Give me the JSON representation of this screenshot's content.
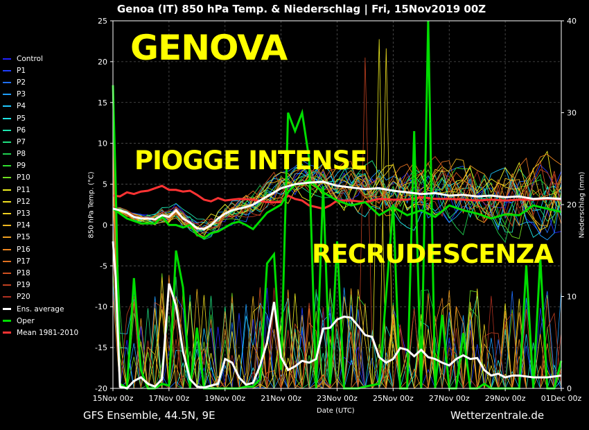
{
  "header": {
    "title": "Genoa  (IT)  850 hPa Temp. & Niederschlag | Fri, 15Nov2019 00Z"
  },
  "overlay": {
    "city": "GENOVA",
    "phrase1": "PIOGGE INTENSE",
    "phrase2": "RECRUDESCENZA"
  },
  "footer": {
    "source": "GFS Ensemble, 44.5N, 9E",
    "site": "Wetterzentrale.de"
  },
  "chart_data": {
    "type": "line",
    "xlabel": "Date (UTC)",
    "ylabel_left": "850 hPa Temp. (°C)",
    "ylabel_right": "Niederschlag (mm)",
    "x_ticks": [
      "15Nov 00z",
      "17Nov 00z",
      "19Nov 00z",
      "21Nov 00z",
      "23Nov 00z",
      "25Nov 00z",
      "27Nov 00z",
      "29Nov 00z",
      "01Dec 00z"
    ],
    "x_days_range": [
      0,
      16
    ],
    "ylim_left": [
      -20,
      25
    ],
    "yticks_left": [
      -20,
      -15,
      -10,
      -5,
      0,
      5,
      10,
      15,
      20,
      25
    ],
    "ylim_right": [
      0,
      40
    ],
    "yticks_right": [
      0,
      10,
      20,
      30,
      40
    ],
    "grid": true,
    "legend_position": "left",
    "series": [
      {
        "name": "Control",
        "color": "#2222ff"
      },
      {
        "name": "P1",
        "color": "#1f3fff"
      },
      {
        "name": "P2",
        "color": "#1f6fff"
      },
      {
        "name": "P3",
        "color": "#1f9fff"
      },
      {
        "name": "P4",
        "color": "#1fc8ff"
      },
      {
        "name": "P5",
        "color": "#1fe8e8"
      },
      {
        "name": "P6",
        "color": "#1fe8b0"
      },
      {
        "name": "P7",
        "color": "#1fe080"
      },
      {
        "name": "P8",
        "color": "#1fd050"
      },
      {
        "name": "P9",
        "color": "#30e030"
      },
      {
        "name": "P10",
        "color": "#70e020"
      },
      {
        "name": "P11",
        "color": "#f0f020"
      },
      {
        "name": "P12",
        "color": "#f0e020"
      },
      {
        "name": "P13",
        "color": "#f0d020"
      },
      {
        "name": "P14",
        "color": "#f0b820"
      },
      {
        "name": "P15",
        "color": "#f0a020"
      },
      {
        "name": "P16",
        "color": "#f08820"
      },
      {
        "name": "P17",
        "color": "#e07020"
      },
      {
        "name": "P18",
        "color": "#d05020"
      },
      {
        "name": "P19",
        "color": "#c04020"
      },
      {
        "name": "P20",
        "color": "#b03020"
      },
      {
        "name": "Ens. average",
        "color": "#ffffff"
      },
      {
        "name": "Oper",
        "color": "#00dd00"
      },
      {
        "name": "Mean 1981-2010",
        "color": "#ff3333"
      }
    ],
    "ens_average_temp": [
      [
        0,
        2
      ],
      [
        0.25,
        1.8
      ],
      [
        0.5,
        1.5
      ],
      [
        0.75,
        1
      ],
      [
        1,
        0.8
      ],
      [
        1.25,
        0.8
      ],
      [
        1.5,
        0.7
      ],
      [
        1.75,
        1.2
      ],
      [
        2,
        1
      ],
      [
        2.25,
        1.8
      ],
      [
        2.5,
        0.8
      ],
      [
        2.75,
        0.3
      ],
      [
        3,
        -0.4
      ],
      [
        3.25,
        -0.5
      ],
      [
        3.5,
        0
      ],
      [
        3.75,
        0.8
      ],
      [
        4,
        1.4
      ],
      [
        4.25,
        1.8
      ],
      [
        4.5,
        2
      ],
      [
        4.75,
        2.2
      ],
      [
        5,
        2.5
      ],
      [
        5.25,
        3
      ],
      [
        5.5,
        3.5
      ],
      [
        5.75,
        4
      ],
      [
        6,
        4.5
      ],
      [
        6.5,
        5
      ],
      [
        7,
        5.2
      ],
      [
        7.5,
        5.3
      ],
      [
        8,
        4.8
      ],
      [
        8.5,
        4.6
      ],
      [
        9,
        4.4
      ],
      [
        9.5,
        4.5
      ],
      [
        10,
        4.2
      ],
      [
        10.5,
        4
      ],
      [
        11,
        3.8
      ],
      [
        11.5,
        3.9
      ],
      [
        12,
        3.6
      ],
      [
        12.5,
        3.7
      ],
      [
        13,
        3.5
      ],
      [
        13.5,
        3.6
      ],
      [
        14,
        3.4
      ],
      [
        14.5,
        3.5
      ],
      [
        15,
        3.2
      ],
      [
        15.5,
        3.3
      ],
      [
        16,
        3.2
      ]
    ],
    "ens_average_precip": [
      [
        0,
        16
      ],
      [
        0.1,
        12
      ],
      [
        0.25,
        0.2
      ],
      [
        0.5,
        0
      ],
      [
        0.75,
        0.8
      ],
      [
        1,
        1.2
      ],
      [
        1.25,
        0.5
      ],
      [
        1.5,
        0.2
      ],
      [
        1.75,
        1
      ],
      [
        2,
        11.4
      ],
      [
        2.25,
        9
      ],
      [
        2.5,
        4
      ],
      [
        2.75,
        1
      ],
      [
        3,
        0.2
      ],
      [
        3.25,
        0.1
      ],
      [
        3.5,
        0.3
      ],
      [
        3.75,
        0.5
      ],
      [
        4,
        3.2
      ],
      [
        4.25,
        2.8
      ],
      [
        4.5,
        1.2
      ],
      [
        4.75,
        0.4
      ],
      [
        5,
        0.6
      ],
      [
        5.25,
        2.5
      ],
      [
        5.5,
        5
      ],
      [
        5.75,
        9.4
      ],
      [
        6,
        3.4
      ],
      [
        6.25,
        2
      ],
      [
        6.5,
        2.4
      ],
      [
        6.75,
        3
      ],
      [
        7,
        2.8
      ],
      [
        7.25,
        3.2
      ],
      [
        7.5,
        6.5
      ],
      [
        7.75,
        6.6
      ],
      [
        8,
        7.5
      ],
      [
        8.25,
        7.8
      ],
      [
        8.5,
        7.7
      ],
      [
        8.75,
        6.8
      ],
      [
        9,
        5.8
      ],
      [
        9.25,
        5.6
      ],
      [
        9.5,
        3.4
      ],
      [
        9.75,
        2.8
      ],
      [
        10,
        3.2
      ],
      [
        10.25,
        4.4
      ],
      [
        10.5,
        4.2
      ],
      [
        10.75,
        3.5
      ],
      [
        11,
        4.2
      ],
      [
        11.25,
        3.4
      ],
      [
        11.5,
        3.2
      ],
      [
        11.75,
        2.8
      ],
      [
        12,
        2.5
      ],
      [
        12.25,
        3.2
      ],
      [
        12.5,
        3.6
      ],
      [
        12.75,
        3.2
      ],
      [
        13,
        3.3
      ],
      [
        13.25,
        2
      ],
      [
        13.5,
        1.4
      ],
      [
        13.75,
        1.6
      ],
      [
        14,
        1.2
      ],
      [
        14.25,
        1.4
      ],
      [
        14.5,
        1.4
      ],
      [
        15,
        1.2
      ],
      [
        15.5,
        1.2
      ],
      [
        16,
        1.4
      ]
    ],
    "oper_temp": [
      [
        0,
        2
      ],
      [
        0.5,
        0.8
      ],
      [
        1,
        0.2
      ],
      [
        1.5,
        0.2
      ],
      [
        1.75,
        1
      ],
      [
        2,
        0
      ],
      [
        2.25,
        0
      ],
      [
        2.5,
        -0.3
      ],
      [
        2.75,
        0
      ],
      [
        3,
        -1.2
      ],
      [
        3.25,
        -1.6
      ],
      [
        3.5,
        -1
      ],
      [
        3.75,
        -0.8
      ],
      [
        4,
        -0.3
      ],
      [
        4.25,
        0.2
      ],
      [
        4.5,
        0.4
      ],
      [
        4.75,
        0
      ],
      [
        5,
        -0.5
      ],
      [
        5.5,
        1.5
      ],
      [
        6,
        2.5
      ],
      [
        6.25,
        4
      ],
      [
        6.5,
        5
      ],
      [
        6.75,
        5
      ],
      [
        7,
        5.5
      ],
      [
        7.5,
        4
      ],
      [
        8,
        3
      ],
      [
        8.5,
        2.4
      ],
      [
        9,
        2.8
      ],
      [
        9.5,
        1.2
      ],
      [
        10,
        2.2
      ],
      [
        10.5,
        1.2
      ],
      [
        11,
        1.8
      ],
      [
        11.5,
        1
      ],
      [
        12,
        2.4
      ],
      [
        12.5,
        1.8
      ],
      [
        13,
        1.4
      ],
      [
        13.5,
        0.8
      ],
      [
        14,
        1.3
      ],
      [
        14.5,
        1.2
      ],
      [
        15,
        2.4
      ],
      [
        15.5,
        2
      ],
      [
        16,
        1.6
      ]
    ],
    "oper_precip": [
      [
        0,
        33
      ],
      [
        0.1,
        22
      ],
      [
        0.25,
        0.5
      ],
      [
        0.5,
        0
      ],
      [
        0.75,
        12
      ],
      [
        1,
        2
      ],
      [
        1.25,
        0
      ],
      [
        1.5,
        0
      ],
      [
        1.75,
        0.5
      ],
      [
        2,
        0.3
      ],
      [
        2.25,
        15
      ],
      [
        2.5,
        11
      ],
      [
        2.75,
        0
      ],
      [
        3,
        6.6
      ],
      [
        3.25,
        0
      ],
      [
        3.5,
        0
      ],
      [
        3.75,
        0
      ],
      [
        4,
        0
      ],
      [
        4.25,
        0
      ],
      [
        4.5,
        0
      ],
      [
        4.75,
        0.2
      ],
      [
        5,
        0.2
      ],
      [
        5.25,
        1
      ],
      [
        5.5,
        13.6
      ],
      [
        5.75,
        14.6
      ],
      [
        6,
        2
      ],
      [
        6.25,
        30
      ],
      [
        6.5,
        28
      ],
      [
        6.75,
        30
      ],
      [
        7,
        25
      ],
      [
        7.25,
        0
      ],
      [
        7.5,
        22
      ],
      [
        7.75,
        0.5
      ],
      [
        8,
        16
      ],
      [
        8.25,
        0
      ],
      [
        8.5,
        0
      ],
      [
        8.75,
        0
      ],
      [
        9,
        0.2
      ],
      [
        9.5,
        0.5
      ],
      [
        10,
        20
      ],
      [
        10.25,
        0
      ],
      [
        10.5,
        0
      ],
      [
        10.75,
        28
      ],
      [
        11,
        0
      ],
      [
        11.25,
        40
      ],
      [
        11.5,
        0
      ],
      [
        11.75,
        8
      ],
      [
        12,
        0
      ],
      [
        12.25,
        0
      ],
      [
        12.5,
        6
      ],
      [
        12.75,
        0
      ],
      [
        13,
        0
      ],
      [
        13.25,
        0.5
      ],
      [
        13.5,
        0
      ],
      [
        14,
        0
      ],
      [
        14.25,
        0
      ],
      [
        14.5,
        0
      ],
      [
        14.75,
        13.4
      ],
      [
        15,
        0
      ],
      [
        15.25,
        14.2
      ],
      [
        15.5,
        0
      ],
      [
        15.75,
        0
      ],
      [
        16,
        3
      ]
    ],
    "mean_temp": [
      [
        0,
        3.6
      ],
      [
        0.25,
        3.5
      ],
      [
        0.5,
        4
      ],
      [
        0.75,
        3.8
      ],
      [
        1,
        4.1
      ],
      [
        1.25,
        4.2
      ],
      [
        1.5,
        4.5
      ],
      [
        1.75,
        4.8
      ],
      [
        2,
        4.3
      ],
      [
        2.25,
        4.3
      ],
      [
        2.5,
        4.1
      ],
      [
        2.75,
        4.2
      ],
      [
        3,
        3.7
      ],
      [
        3.25,
        3.1
      ],
      [
        3.5,
        2.9
      ],
      [
        3.75,
        3.3
      ],
      [
        4,
        3
      ],
      [
        4.25,
        3.1
      ],
      [
        4.5,
        3.2
      ],
      [
        5,
        3.1
      ],
      [
        5.5,
        2.8
      ],
      [
        6,
        2.8
      ],
      [
        6.25,
        3.6
      ],
      [
        6.5,
        3.2
      ],
      [
        6.75,
        3
      ],
      [
        7,
        2.4
      ],
      [
        7.25,
        2.2
      ],
      [
        7.5,
        2
      ],
      [
        7.75,
        2.4
      ],
      [
        8,
        3
      ],
      [
        8.5,
        3
      ],
      [
        9,
        2.8
      ],
      [
        9.5,
        3.2
      ],
      [
        10,
        3.1
      ],
      [
        10.5,
        3.1
      ],
      [
        11,
        3.4
      ],
      [
        11.5,
        3.2
      ],
      [
        12,
        3.2
      ],
      [
        12.5,
        3.1
      ],
      [
        13,
        3
      ],
      [
        13.5,
        3.1
      ],
      [
        14,
        3
      ],
      [
        14.5,
        3.1
      ],
      [
        15,
        3.1
      ],
      [
        15.5,
        3.2
      ],
      [
        16,
        3.1
      ]
    ]
  }
}
